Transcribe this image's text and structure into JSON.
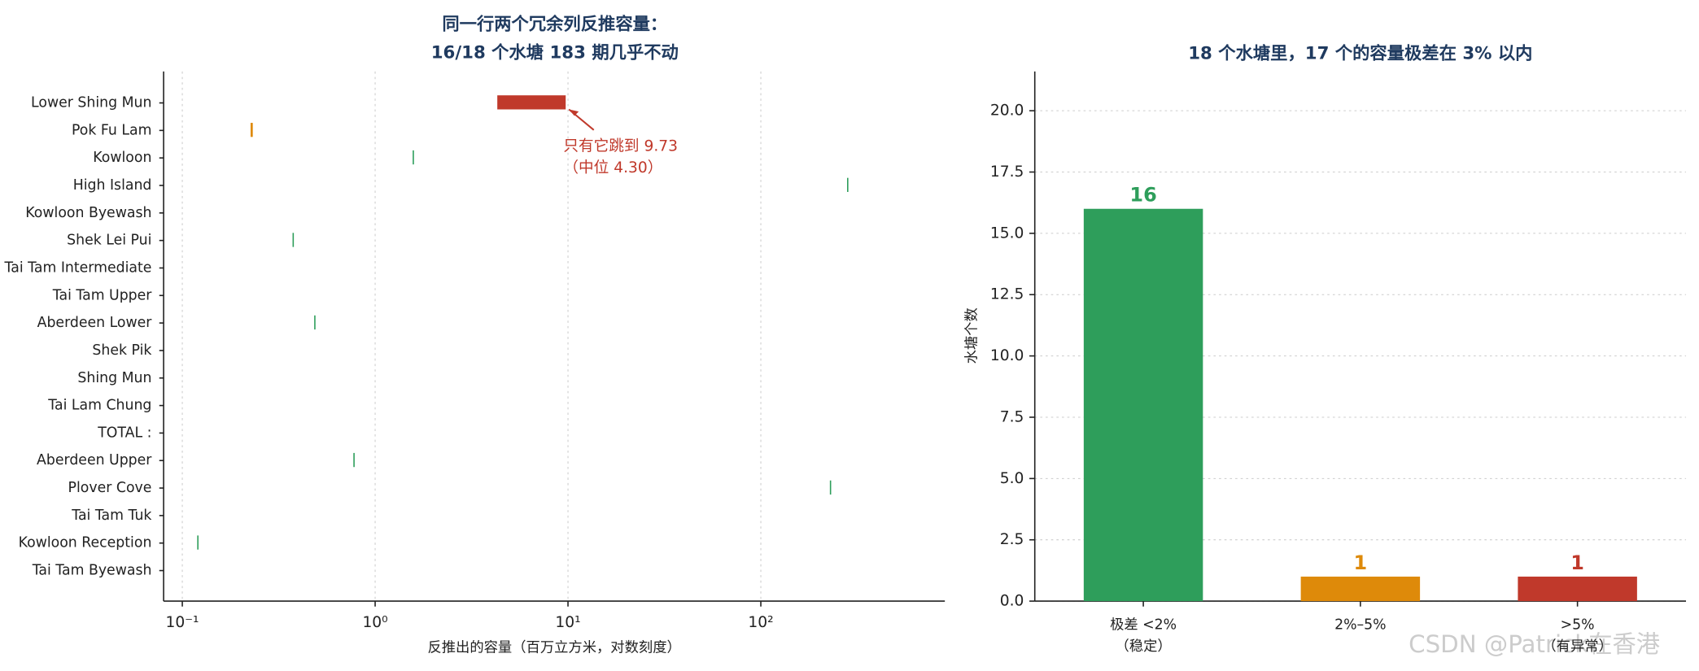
{
  "chart_data": [
    {
      "type": "range",
      "title": [
        "同一行两个冗余列反推容量：",
        "16/18 个水塘 183 期几乎不动"
      ],
      "x_label": "反推出的容量（百万立方米，对数刻度）",
      "x_scale": "log",
      "categories": [
        "Lower Shing Mun",
        "Pok Fu Lam",
        "Kowloon",
        "High Island",
        "Kowloon Byewash",
        "Shek Lei Pui",
        "Tai Tam Intermediate",
        "Tai Tam Upper",
        "Aberdeen Lower",
        "Shek Pik",
        "Shing Mun",
        "Tai Lam Chung",
        "TOTAL :",
        "Aberdeen Upper",
        "Plover Cove",
        "Tai Tam Tuk",
        "Kowloon Reception",
        "Tai Tam Byewash"
      ],
      "low": [
        4.3,
        0.226,
        1.565,
        280,
        null,
        0.373,
        null,
        null,
        0.483,
        null,
        null,
        null,
        null,
        0.771,
        228,
        null,
        0.1195,
        null
      ],
      "high": [
        9.73,
        0.232,
        1.575,
        283,
        null,
        0.376,
        null,
        null,
        0.486,
        null,
        null,
        null,
        null,
        0.775,
        230,
        null,
        0.1205,
        null
      ],
      "colors": [
        "#c0392b",
        "#de8a0a",
        "#2e9e5b",
        "#2e9e5b",
        "#2e9e5b",
        "#2e9e5b",
        "#2e9e5b",
        "#2e9e5b",
        "#2e9e5b",
        "#2e9e5b",
        "#2e9e5b",
        "#2e9e5b",
        "#2e9e5b",
        "#2e9e5b",
        "#2e9e5b",
        "#2e9e5b",
        "#2e9e5b",
        "#2e9e5b"
      ],
      "xlim": [
        0.08,
        900
      ],
      "xticks": [
        {
          "value": 0.1,
          "label": "10⁻¹"
        },
        {
          "value": 1,
          "label": "10⁰"
        },
        {
          "value": 10,
          "label": "10¹"
        },
        {
          "value": 100,
          "label": "10²"
        }
      ],
      "grid": true,
      "annotation": {
        "lines": [
          "只有它跳到 9.73",
          "（中位 4.30）"
        ],
        "color": "#c0392b"
      }
    },
    {
      "type": "bar",
      "title": "18 个水塘里，17 个的容量极差在 3% 以内",
      "y_label": "水塘个数",
      "categories": [
        [
          "极差 <2%",
          "（稳定）"
        ],
        [
          "2%–5%"
        ],
        [
          ">5%",
          "（有异常）"
        ]
      ],
      "values": [
        16,
        1,
        1
      ],
      "colors": [
        "#2e9e5b",
        "#de8a0a",
        "#c0392b"
      ],
      "ylim": [
        0,
        21.6
      ],
      "yticks": [
        {
          "value": 0,
          "label": "0.0"
        },
        2.5,
        {
          "value": 5,
          "label": "5.0"
        },
        7.5,
        {
          "value": 10,
          "label": "10.0"
        },
        12.5,
        {
          "value": 15,
          "label": "15.0"
        },
        17.5,
        {
          "value": 20,
          "label": "20.0"
        }
      ],
      "grid": true
    }
  ],
  "watermark": "CSDN @Patrick在香港"
}
